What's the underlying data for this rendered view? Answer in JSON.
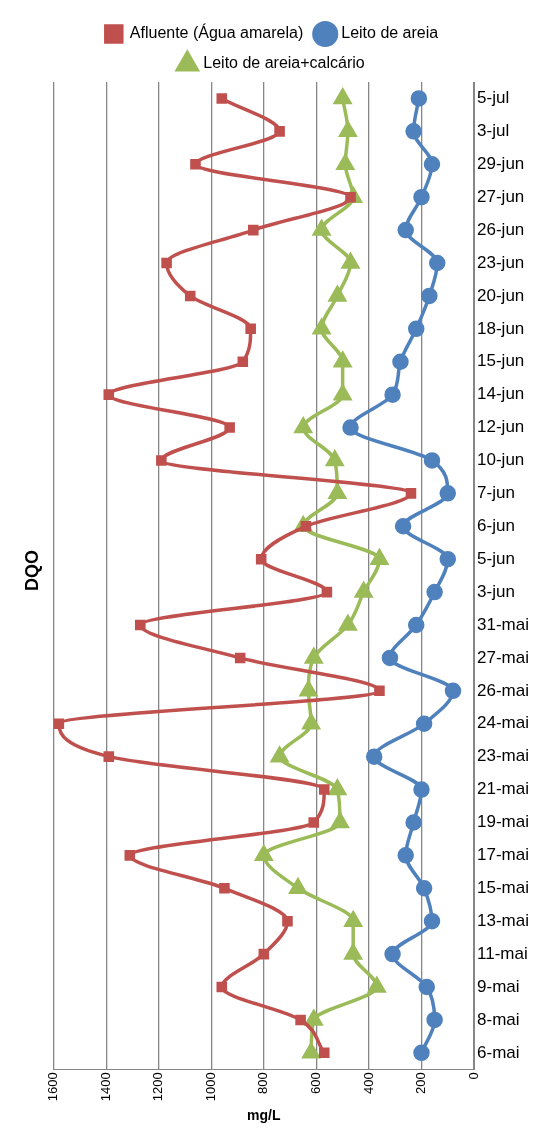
{
  "chart_data": {
    "type": "line",
    "title": "DQO",
    "xlabel": "mg/L",
    "orientation": "horizontal",
    "legend": "top",
    "grid": "x",
    "xlim": [
      1600,
      0
    ],
    "xticks": [
      0,
      200,
      400,
      600,
      800,
      1000,
      1200,
      1400,
      1600
    ],
    "categories": [
      "5-jul",
      "3-jul",
      "29-jun",
      "27-jun",
      "26-jun",
      "23-jun",
      "20-jun",
      "18-jun",
      "15-jun",
      "14-jun",
      "12-jun",
      "10-jun",
      "7-jun",
      "6-jun",
      "5-jun",
      "3-jun",
      "31-mai",
      "27-mai",
      "26-mai",
      "24-mai",
      "23-mai",
      "21-mai",
      "19-mai",
      "17-mai",
      "15-mai",
      "13-mai",
      "11-mai",
      "9-mai",
      "8-mai",
      "6-mai"
    ],
    "series": [
      {
        "name": "Afluente (Água amarela)",
        "color": "#c0504d",
        "marker": "square",
        "values": [
          960,
          740,
          1060,
          470,
          840,
          1170,
          1080,
          850,
          880,
          1390,
          930,
          1190,
          240,
          640,
          810,
          560,
          1270,
          890,
          360,
          1580,
          1390,
          570,
          610,
          1310,
          950,
          710,
          800,
          960,
          660,
          570
        ]
      },
      {
        "name": "Leito de areia",
        "color": "#4f81bd",
        "marker": "circle",
        "values": [
          210,
          230,
          160,
          200,
          260,
          140,
          170,
          220,
          280,
          310,
          470,
          160,
          100,
          270,
          100,
          150,
          220,
          320,
          80,
          190,
          380,
          200,
          230,
          260,
          190,
          160,
          310,
          180,
          150,
          200
        ]
      },
      {
        "name": "Leito de areia+calcário",
        "color": "#9bbb59",
        "marker": "triangle",
        "values": [
          500,
          480,
          490,
          460,
          580,
          470,
          520,
          580,
          500,
          500,
          650,
          530,
          520,
          650,
          360,
          420,
          480,
          610,
          630,
          620,
          740,
          520,
          510,
          800,
          670,
          460,
          460,
          370,
          610,
          620
        ]
      }
    ]
  }
}
